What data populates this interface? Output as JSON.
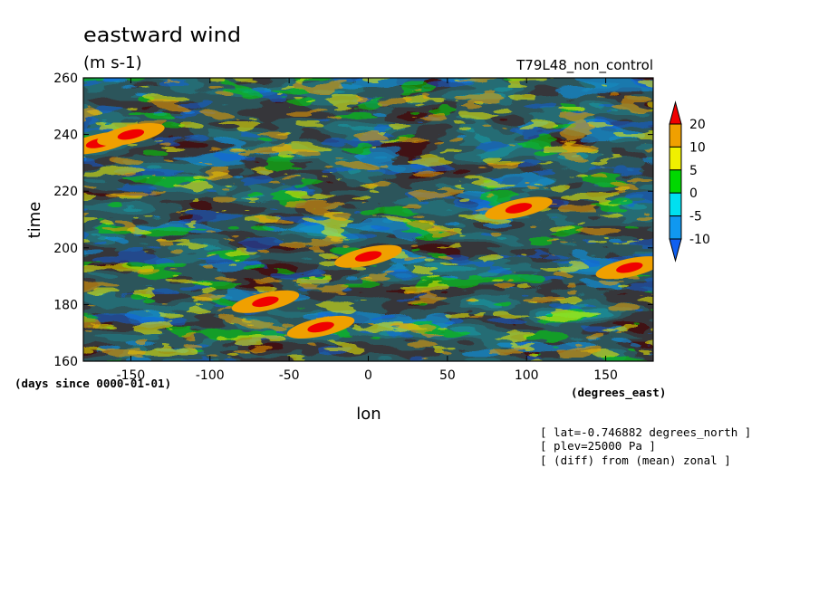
{
  "chart_data": {
    "type": "heatmap",
    "title": "eastward wind",
    "units": "(m s-1)",
    "run_label": "T79L48_non_control",
    "xlabel": "lon",
    "xunits": "(degrees_east)",
    "ylabel": "time",
    "yunits": "(days since 0000-01-01)",
    "xlim": [
      -180,
      180
    ],
    "ylim": [
      160,
      260
    ],
    "xticks": [
      -150,
      -100,
      -50,
      0,
      50,
      100,
      150
    ],
    "xtick_labels": [
      "-150",
      "-100",
      "-50",
      "0",
      "50",
      "100",
      "150"
    ],
    "yticks": [
      160,
      180,
      200,
      220,
      240,
      260
    ],
    "ytick_labels": [
      "160",
      "180",
      "200",
      "220",
      "240",
      "260"
    ],
    "contour_levels": [
      -10,
      -5,
      0,
      5,
      10,
      20
    ],
    "colorbar_labels": [
      "20",
      "10",
      "5",
      "0",
      "-5",
      "-10"
    ],
    "colorbar_colors": [
      "#1060f0",
      "#1098f0",
      "#00e0f0",
      "#00d800",
      "#f0f000",
      "#f0a000",
      "#f00000"
    ],
    "annotations": [
      "[ lat=-0.746882 degrees_north ]",
      "[ plev=25000 Pa ]",
      "[ (diff) from (mean) zonal ]"
    ],
    "strong_westerly_features": [
      {
        "lon": -170,
        "time": 237,
        "value": 20
      },
      {
        "lon": -150,
        "time": 240,
        "value": 20
      },
      {
        "lon": -65,
        "time": 181,
        "value": 20
      },
      {
        "lon": -30,
        "time": 172,
        "value": 20
      },
      {
        "lon": 0,
        "time": 197,
        "value": 20
      },
      {
        "lon": 95,
        "time": 214,
        "value": 20
      },
      {
        "lon": 165,
        "time": 193,
        "value": 20
      }
    ]
  }
}
